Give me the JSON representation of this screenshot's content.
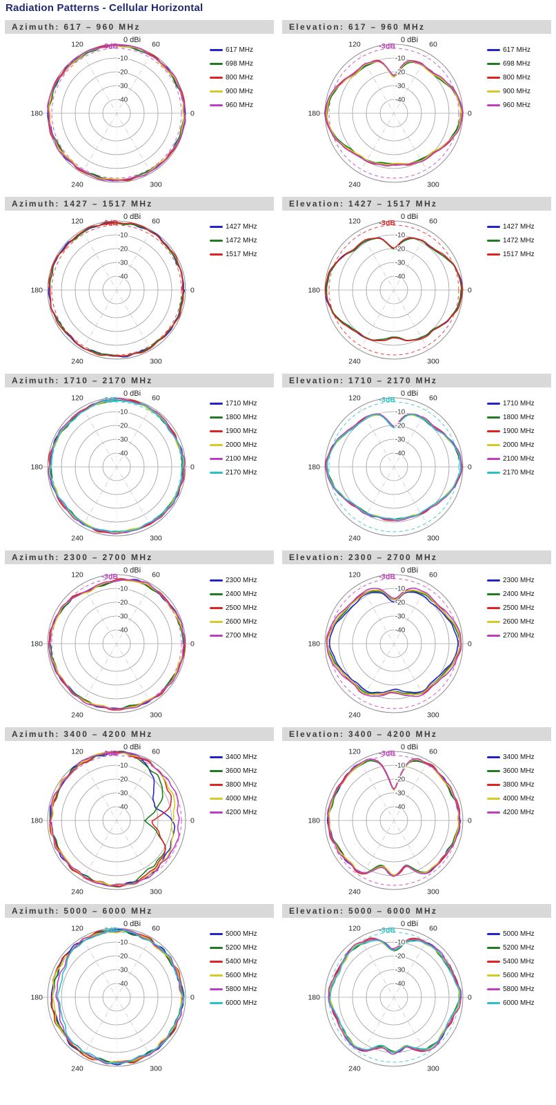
{
  "page": {
    "title": "Radiation Patterns - Cellular Horizontal"
  },
  "colors": {
    "blue": "#2323cd",
    "green": "#1e7d1e",
    "red": "#e02222",
    "yellow": "#d2ca28",
    "magenta": "#bf3ebf",
    "cyan": "#2bc0c8",
    "header_bg": "#d9d9d9",
    "header_text": "#3c3c3c",
    "title_text": "#232a70"
  },
  "polar_common": {
    "radial_axis_label": "0 dBi",
    "radial_ticks": [
      {
        "db": -10,
        "label": "-10"
      },
      {
        "db": -20,
        "label": "-20"
      },
      {
        "db": -30,
        "label": "-30"
      },
      {
        "db": -40,
        "label": "-40"
      }
    ],
    "angle_ticks": [
      {
        "deg": 0,
        "label": "0"
      },
      {
        "deg": 60,
        "label": "60"
      },
      {
        "deg": 120,
        "label": "120"
      },
      {
        "deg": 180,
        "label": "180"
      },
      {
        "deg": 240,
        "label": "240"
      },
      {
        "deg": 300,
        "label": "300"
      }
    ],
    "ref_label": "-3dB",
    "ref_db": -3,
    "db_min": -50,
    "db_max": 0,
    "angle_step_deg": 15,
    "units": "dBi"
  },
  "chart_data": [
    {
      "header": "Azimuth: 617 – 960 MHz",
      "type": "polar-line",
      "kind": "azimuth",
      "ref_color": "magenta",
      "base_db": [
        -0.8,
        -1.0,
        -1.2,
        -1.4,
        -1.2,
        -1.0,
        -0.9,
        -1.0,
        -1.2,
        -1.4,
        -1.2,
        -0.9,
        -0.7,
        -1.0,
        -1.3,
        -1.6,
        -1.8,
        -1.7,
        -1.6,
        -1.7,
        -1.8,
        -1.6,
        -1.3,
        -1.0
      ],
      "series": [
        {
          "label": "617 MHz",
          "color": "blue",
          "offset_db": 0
        },
        {
          "label": "698 MHz",
          "color": "green",
          "offset_db": -0.3
        },
        {
          "label": "800 MHz",
          "color": "red",
          "offset_db": 0.25
        },
        {
          "label": "900 MHz",
          "color": "yellow",
          "offset_db": -0.2
        },
        {
          "label": "960 MHz",
          "color": "magenta",
          "offset_db": 0.35
        }
      ]
    },
    {
      "header": "Elevation: 617 – 960 MHz",
      "type": "polar-line",
      "kind": "elevation",
      "ref_color": "magenta",
      "base_db": [
        -0.8,
        -2.5,
        -6,
        -9.5,
        -9.5,
        -11.5,
        -23,
        -11.5,
        -9.5,
        -9.5,
        -6,
        -2.5,
        -0.8,
        -2.5,
        -6,
        -9.5,
        -10.5,
        -12,
        -13,
        -12,
        -10.5,
        -9.5,
        -6,
        -2.5
      ],
      "series": [
        {
          "label": "617 MHz",
          "color": "blue",
          "offset_db": 0
        },
        {
          "label": "698 MHz",
          "color": "green",
          "offset_db": -0.6
        },
        {
          "label": "800 MHz",
          "color": "red",
          "offset_db": 0.3
        },
        {
          "label": "900 MHz",
          "color": "yellow",
          "offset_db": -0.3
        },
        {
          "label": "960 MHz",
          "color": "magenta",
          "offset_db": 0.5
        }
      ]
    },
    {
      "header": "Azimuth: 1427 – 1517 MHz",
      "type": "polar-line",
      "kind": "azimuth",
      "ref_color": "red",
      "base_db": [
        -1.5,
        -1.8,
        -1.5,
        -1.2,
        -1.0,
        -1.0,
        -1.2,
        -1.5,
        -1.3,
        -1.5,
        -1.2,
        -1.0,
        -1.2,
        -1.5,
        -1.8,
        -2.2,
        -2.0,
        -2.3,
        -2.0,
        -2.2,
        -1.8,
        -2.0,
        -1.8,
        -1.6
      ],
      "series": [
        {
          "label": "1427 MHz",
          "color": "blue",
          "offset_db": 0
        },
        {
          "label": "1472 MHz",
          "color": "green",
          "offset_db": -0.2
        },
        {
          "label": "1517 MHz",
          "color": "red",
          "offset_db": 0.15
        }
      ]
    },
    {
      "header": "Elevation: 1427 – 1517 MHz",
      "type": "polar-line",
      "kind": "elevation",
      "ref_color": "red",
      "base_db": [
        -0.6,
        -2.0,
        -5,
        -8.5,
        -9,
        -11.5,
        -19.5,
        -11.5,
        -9,
        -8.5,
        -5,
        -2,
        -0.6,
        -2.2,
        -5.5,
        -9,
        -10,
        -12.5,
        -15.5,
        -12.5,
        -10,
        -9,
        -5.5,
        -2.2
      ],
      "series": [
        {
          "label": "1427 MHz",
          "color": "blue",
          "offset_db": 0
        },
        {
          "label": "1472 MHz",
          "color": "green",
          "offset_db": -0.3
        },
        {
          "label": "1517 MHz",
          "color": "red",
          "offset_db": 0.3
        }
      ]
    },
    {
      "header": "Azimuth: 1710 – 2170 MHz",
      "type": "polar-line",
      "kind": "azimuth",
      "ref_color": "cyan",
      "base_db": [
        -1.5,
        -2,
        -2.5,
        -2,
        -1.5,
        -1.2,
        -1.5,
        -2,
        -2.5,
        -2.8,
        -2.2,
        -1.8,
        -1.5,
        -2,
        -2.5,
        -2.8,
        -2.5,
        -2.2,
        -2.5,
        -2.8,
        -2.5,
        -2.2,
        -2.0,
        -1.8
      ],
      "series": [
        {
          "label": "1710 MHz",
          "color": "blue",
          "offset_db": 0
        },
        {
          "label": "1800 MHz",
          "color": "green",
          "offset_db": -0.3
        },
        {
          "label": "1900 MHz",
          "color": "red",
          "offset_db": 0.25
        },
        {
          "label": "2000 MHz",
          "color": "yellow",
          "offset_db": -0.2
        },
        {
          "label": "2100 MHz",
          "color": "magenta",
          "offset_db": 0.35
        },
        {
          "label": "2170 MHz",
          "color": "cyan",
          "offset_db": -0.45
        }
      ]
    },
    {
      "header": "Elevation: 1710 – 2170 MHz",
      "type": "polar-line",
      "kind": "elevation",
      "ref_color": "cyan",
      "base_db": [
        -1,
        -2.8,
        -6,
        -9,
        -9,
        -11,
        -21,
        -11,
        -9,
        -9,
        -6,
        -2.8,
        -1,
        -3.5,
        -7,
        -10,
        -11,
        -12,
        -11.5,
        -12,
        -11,
        -10,
        -7,
        -3.5
      ],
      "series": [
        {
          "label": "1710 MHz",
          "color": "blue",
          "offset_db": 0
        },
        {
          "label": "1800 MHz",
          "color": "green",
          "offset_db": -0.3
        },
        {
          "label": "1900 MHz",
          "color": "red",
          "offset_db": 0.2
        },
        {
          "label": "2000 MHz",
          "color": "yellow",
          "offset_db": -0.2
        },
        {
          "label": "2100 MHz",
          "color": "magenta",
          "offset_db": 0.3
        },
        {
          "label": "2170 MHz",
          "color": "cyan",
          "offset_db": -0.4
        }
      ]
    },
    {
      "header": "Azimuth: 2300 – 2700 MHz",
      "type": "polar-line",
      "kind": "azimuth",
      "ref_color": "magenta",
      "base_db": [
        -1.2,
        -1.5,
        -2,
        -2.5,
        -2,
        -2.5,
        -4.5,
        -6,
        -6.5,
        -4,
        -3,
        -2,
        -1.5,
        -2,
        -2.5,
        -2.8,
        -2.5,
        -3,
        -2.8,
        -3,
        -2.5,
        -2.2,
        -2,
        -1.5
      ],
      "series": [
        {
          "label": "2300 MHz",
          "color": "blue",
          "offset_db": 0
        },
        {
          "label": "2400 MHz",
          "color": "green",
          "offset_db": -0.3
        },
        {
          "label": "2500 MHz",
          "color": "red",
          "offset_db": 0.25
        },
        {
          "label": "2600 MHz",
          "color": "yellow",
          "offset_db": -0.2
        },
        {
          "label": "2700 MHz",
          "color": "magenta",
          "offset_db": 0.35
        }
      ]
    },
    {
      "header": "Elevation: 2300 – 2700 MHz",
      "type": "polar-line",
      "kind": "elevation",
      "ref_color": "magenta",
      "base_db": [
        -1.2,
        -3,
        -6,
        -7.5,
        -7,
        -9.5,
        -17.5,
        -9.5,
        -7,
        -7.5,
        -6,
        -3,
        -1.2,
        -3.5,
        -6.5,
        -8.5,
        -8,
        -11.5,
        -14.5,
        -11.5,
        -8,
        -8.5,
        -6.5,
        -3.5
      ],
      "series": [
        {
          "label": "2300 MHz",
          "color": "blue",
          "offset_db": -2.2
        },
        {
          "label": "2400 MHz",
          "color": "green",
          "offset_db": -1.0
        },
        {
          "label": "2500 MHz",
          "color": "red",
          "offset_db": -0.4
        },
        {
          "label": "2600 MHz",
          "color": "yellow",
          "offset_db": -0.7
        },
        {
          "label": "2700 MHz",
          "color": "magenta",
          "offset_db": 0.4
        }
      ]
    },
    {
      "header": "Azimuth: 3400 – 4200 MHz",
      "type": "polar-line",
      "kind": "azimuth",
      "ref_color": "magenta",
      "base_db": [
        -4.5,
        -4,
        -3.2,
        -2.5,
        -1.8,
        -1,
        -0.7,
        -0.9,
        -1.2,
        -1.9,
        -2.2,
        -2.1,
        -2.1,
        -2.5,
        -2.9,
        -2.9,
        -3.1,
        -2.9,
        -2.7,
        -3.1,
        -3.5,
        -4,
        -4.2,
        -4.5
      ],
      "series": [
        {
          "label": "3400 MHz",
          "color": "blue",
          "offset_db": 0,
          "db": [
            -10,
            -18,
            -20,
            -12,
            -4,
            -1.2,
            -0.8,
            -1,
            -1.3,
            -2,
            -2.3,
            -2.2,
            -2.2,
            -2.6,
            -3,
            -3,
            -3.2,
            -3,
            -2.8,
            -3.2,
            -4,
            -5.5,
            -6,
            -8
          ]
        },
        {
          "label": "3600 MHz",
          "color": "green",
          "offset_db": 0,
          "db": [
            -30,
            -20,
            -11,
            -7.5,
            -5,
            -1.5,
            -1,
            -1.2,
            -1.5,
            -2.2,
            -2.5,
            -2.3,
            -2.3,
            -2.7,
            -3.1,
            -3.1,
            -3.3,
            -3.1,
            -3,
            -3.5,
            -7,
            -9,
            -9,
            -20
          ]
        },
        {
          "label": "3800 MHz",
          "color": "red",
          "offset_db": 0,
          "db": [
            -24,
            -10,
            -6,
            -4,
            -2.5,
            -1.2,
            -0.8,
            -1,
            -1.4,
            -2.1,
            -2.4,
            -2.2,
            -2.2,
            -2.6,
            -3,
            -3,
            -3.2,
            -3,
            -2.9,
            -3.3,
            -4.5,
            -7,
            -10,
            -18
          ]
        },
        {
          "label": "4000 MHz",
          "color": "yellow",
          "offset_db": 0,
          "db": [
            -9,
            -7,
            -5,
            -3.5,
            -2,
            -1.1,
            -0.8,
            -1,
            -1.3,
            -2,
            -2.3,
            -2.2,
            -2.3,
            -2.7,
            -3.1,
            -3.1,
            -3.3,
            -3.1,
            -2.9,
            -3.3,
            -4,
            -5,
            -6,
            -8
          ]
        },
        {
          "label": "4200 MHz",
          "color": "magenta",
          "offset_db": 0
        }
      ]
    },
    {
      "header": "Elevation: 3400 – 4200 MHz",
      "type": "polar-line",
      "kind": "elevation",
      "ref_color": "magenta",
      "base_db": [
        -2.5,
        -3,
        -3.5,
        -3,
        -2.5,
        -6,
        -28,
        -6,
        -2.5,
        -3,
        -3.5,
        -3,
        -2.5,
        -3.5,
        -5,
        -5.5,
        -6,
        -16,
        -10,
        -16,
        -6,
        -5.5,
        -5,
        -3.5
      ],
      "series": [
        {
          "label": "3400 MHz",
          "color": "blue",
          "offset_db": 0
        },
        {
          "label": "3600 MHz",
          "color": "green",
          "offset_db": -0.3
        },
        {
          "label": "3800 MHz",
          "color": "red",
          "offset_db": 0.3
        },
        {
          "label": "4000 MHz",
          "color": "yellow",
          "offset_db": -0.2
        },
        {
          "label": "4200 MHz",
          "color": "magenta",
          "offset_db": 0.4
        }
      ]
    },
    {
      "header": "Azimuth: 5000 – 6000 MHz",
      "type": "polar-line",
      "kind": "azimuth",
      "ref_color": "cyan",
      "base_db": [
        -2.2,
        -2.8,
        -2.4,
        -2.6,
        -2.3,
        -1.8,
        -1.6,
        -1.8,
        -2.0,
        -2.4,
        -2.8,
        -3.2,
        -3.2,
        -3.4,
        -3.2,
        -3.0,
        -2.8,
        -2.6,
        -2.4,
        -2.6,
        -2.8,
        -3.0,
        -2.8,
        -2.5
      ],
      "series": [
        {
          "label": "5000 MHz",
          "color": "blue",
          "offset_db": 0
        },
        {
          "label": "5200 MHz",
          "color": "green",
          "offset_db": -0.3
        },
        {
          "label": "5400 MHz",
          "color": "red",
          "offset_db": 0.25
        },
        {
          "label": "5600 MHz",
          "color": "yellow",
          "offset_db": -0.4
        },
        {
          "label": "5800 MHz",
          "color": "magenta",
          "offset_db": 0,
          "db": [
            -2.4,
            -2.9,
            -2.5,
            -2.7,
            -2.4,
            -1.9,
            -1.7,
            -2,
            -2.5,
            -3.5,
            -5,
            -6.5,
            -7,
            -6.5,
            -5.5,
            -4.2,
            -3.4,
            -2.9,
            -2.6,
            -2.8,
            -3,
            -3.2,
            -3,
            -2.6
          ]
        },
        {
          "label": "6000 MHz",
          "color": "cyan",
          "offset_db": 0,
          "db": [
            -2.5,
            -3,
            -2.6,
            -2.8,
            -2.5,
            -2,
            -1.8,
            -2.2,
            -3,
            -4.5,
            -6.5,
            -8,
            -8.5,
            -8,
            -6.5,
            -5,
            -4,
            -3.2,
            -2.8,
            -3,
            -3.2,
            -3.4,
            -3.2,
            -2.8
          ]
        }
      ]
    },
    {
      "header": "Elevation: 5000 – 6000 MHz",
      "type": "polar-line",
      "kind": "elevation",
      "ref_color": "cyan",
      "base_db": [
        -2,
        -3.5,
        -4.5,
        -4,
        -4.2,
        -7,
        -16,
        -7,
        -4.2,
        -4,
        -5.5,
        -4.5,
        -3.2,
        -5.5,
        -6,
        -4.8,
        -5.5,
        -13,
        -10,
        -13,
        -5.5,
        -4.8,
        -6,
        -4.5
      ],
      "series": [
        {
          "label": "5000 MHz",
          "color": "blue",
          "offset_db": 0
        },
        {
          "label": "5200 MHz",
          "color": "green",
          "offset_db": -0.4
        },
        {
          "label": "5400 MHz",
          "color": "red",
          "offset_db": 0.3
        },
        {
          "label": "5600 MHz",
          "color": "yellow",
          "offset_db": -0.3
        },
        {
          "label": "5800 MHz",
          "color": "magenta",
          "offset_db": 0.5
        },
        {
          "label": "6000 MHz",
          "color": "cyan",
          "offset_db": -0.6
        }
      ]
    }
  ]
}
